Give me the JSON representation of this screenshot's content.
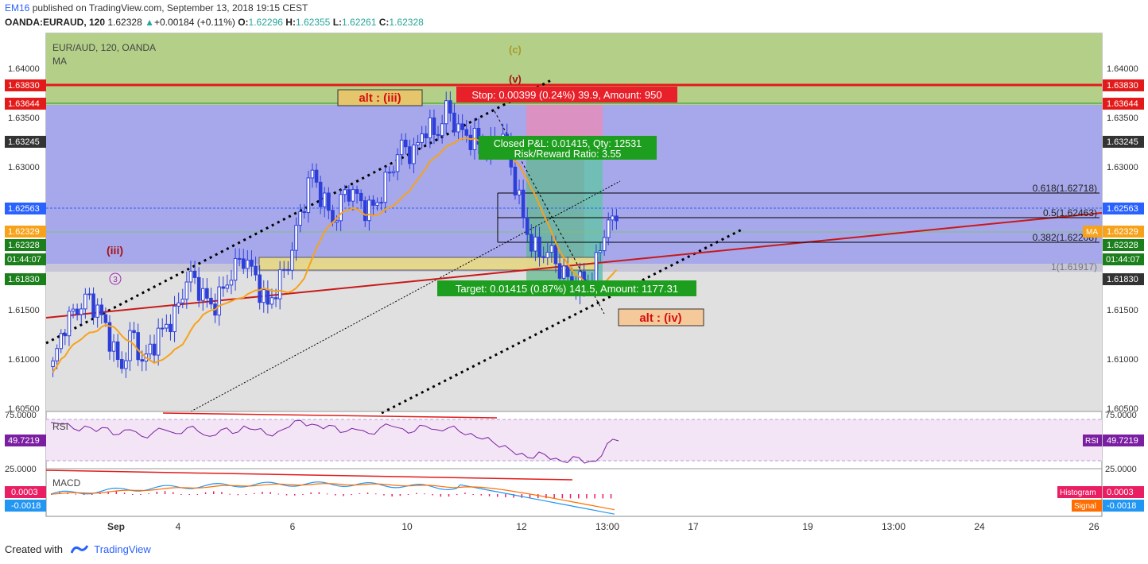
{
  "header": {
    "user": "EM16",
    "published_text": " published on TradingView.com, September 13, 2018 19:15 CEST",
    "symbol": "OANDA:EURAUD, 120",
    "last": "1.62328",
    "change": "+0.00184 (+0.11%)",
    "o_label": "O:",
    "o": "1.62296",
    "h_label": "H:",
    "h": "1.62355",
    "l_label": "L:",
    "l": "1.62261",
    "c_label": "C:",
    "c": "1.62328"
  },
  "legend": {
    "title": "EUR/AUD, 120, OANDA",
    "indicator": "MA"
  },
  "colors": {
    "up_candle": "#ffffff",
    "down_candle": "#2d3fd8",
    "ma": "#f7a21b",
    "trend_red": "#c81919",
    "fib": "#000000",
    "zone_green": "#a9cf76",
    "zone_blue": "#9ea0e8",
    "zone_gray": "#d9d9d9",
    "rsi_line": "#7b1fa2",
    "macd_line": "#2196f3",
    "signal_line": "#ff6d00",
    "hist": "#e91e63",
    "price_blue": "#2962ff",
    "label_dark": "#333333",
    "label_green": "#1b7f1b"
  },
  "chart_data": {
    "type": "candlestick",
    "instrument": "EUR/AUD",
    "timeframe": "120",
    "y_range": [
      1.6031,
      1.6427
    ],
    "y_ticks": [
      "1.64000",
      "1.63500",
      "1.63000",
      "1.62500",
      "1.62000",
      "1.61500",
      "1.61000",
      "1.60500"
    ],
    "x_ticks": [
      "Sep",
      "4",
      "6",
      "10",
      "12",
      "13:00",
      "17",
      "19",
      "13:00",
      "24",
      "26"
    ],
    "ohlc_sequence": {
      "start_price": 1.6078,
      "path": [
        1.6078,
        1.6122,
        1.6136,
        1.615,
        1.6138,
        1.611,
        1.6073,
        1.6115,
        1.608,
        1.6105,
        1.612,
        1.6135,
        1.6175,
        1.616,
        1.614,
        1.6155,
        1.618,
        1.6193,
        1.617,
        1.614,
        1.6165,
        1.619,
        1.624,
        1.6282,
        1.625,
        1.623,
        1.6265,
        1.6255,
        1.624,
        1.6255,
        1.6285,
        1.631,
        1.63,
        1.633,
        1.632,
        1.635,
        1.6325,
        1.6318,
        1.631,
        1.6305,
        1.632,
        1.627,
        1.622,
        1.6195,
        1.62,
        1.618,
        1.6165,
        1.6163,
        1.6175,
        1.6225,
        1.6233
      ]
    },
    "moving_average": {
      "name": "MA",
      "last": "1.62329"
    },
    "price_labels": [
      {
        "value": "1.63830",
        "style": "red"
      },
      {
        "value": "1.63644",
        "style": "red"
      },
      {
        "value": "1.63245",
        "style": "dark"
      },
      {
        "value": "1.62563",
        "style": "blue"
      },
      {
        "value": "1.62329",
        "style": "orange"
      },
      {
        "value": "1.62328",
        "style": "green"
      },
      {
        "value": "01:44:07",
        "style": "green"
      },
      {
        "value": "1.61830",
        "style": "dark"
      }
    ],
    "right_labels": [
      {
        "value": "1.63830",
        "style": "red"
      },
      {
        "value": "1.63644",
        "style": "red"
      },
      {
        "value": "1.63245",
        "style": "dark"
      },
      {
        "value": "1.62563",
        "style": "blue"
      },
      {
        "value": "1.62329",
        "style": "orange",
        "tag": "MA"
      },
      {
        "value": "1.62328",
        "style": "green"
      },
      {
        "value": "01:44:07",
        "style": "green"
      },
      {
        "value": "1.61830",
        "style": "dark"
      }
    ],
    "fib_levels": [
      {
        "ratio": "0.618",
        "label": "0.618(1.62718)",
        "price": 1.62718
      },
      {
        "ratio": "0.5",
        "label": "0.5(1.62463)",
        "price": 1.62463
      },
      {
        "ratio": "0.382",
        "label": "0.382(1.62208)",
        "price": 1.62208
      },
      {
        "ratio": "1",
        "label": "1(1.61917)",
        "price": 1.61917
      }
    ],
    "annotations": {
      "wave_c": "(c)",
      "wave_v": "(v)",
      "wave_iii_red": "(iii)",
      "wave_3": "3",
      "alt_iii": "alt : (iii)",
      "alt_iv": "alt : (iv)",
      "stop": "Stop: 0.00399 (0.24%) 39.9, Amount: 950",
      "pnl": "Closed P&L: 0.01415, Qty: 12531",
      "rr": "Risk/Reward Ratio: 3.55",
      "target": "Target: 0.01415 (0.87%) 141.5, Amount: 1177.31"
    },
    "rsi": {
      "name": "RSI",
      "value": "49.7219",
      "upper": "75.0000",
      "lower": "25.0000",
      "path": [
        70,
        68,
        63,
        66,
        60,
        64,
        57,
        62,
        55,
        59,
        62,
        58,
        64,
        60,
        55,
        62,
        58,
        66,
        62,
        57,
        60,
        65,
        72,
        68,
        63,
        66,
        60,
        62,
        58,
        64,
        66,
        63,
        60,
        66,
        62,
        64,
        60,
        58,
        52,
        48,
        45,
        35,
        32,
        38,
        30,
        28,
        33,
        26,
        28,
        47,
        50
      ]
    },
    "macd": {
      "name": "MACD",
      "histogram_label": "Histogram",
      "histogram": "0.0003",
      "signal_label": "Signal",
      "signal": "-0.0018"
    }
  },
  "footer": {
    "created_with": "Created with",
    "brand": "TradingView"
  }
}
